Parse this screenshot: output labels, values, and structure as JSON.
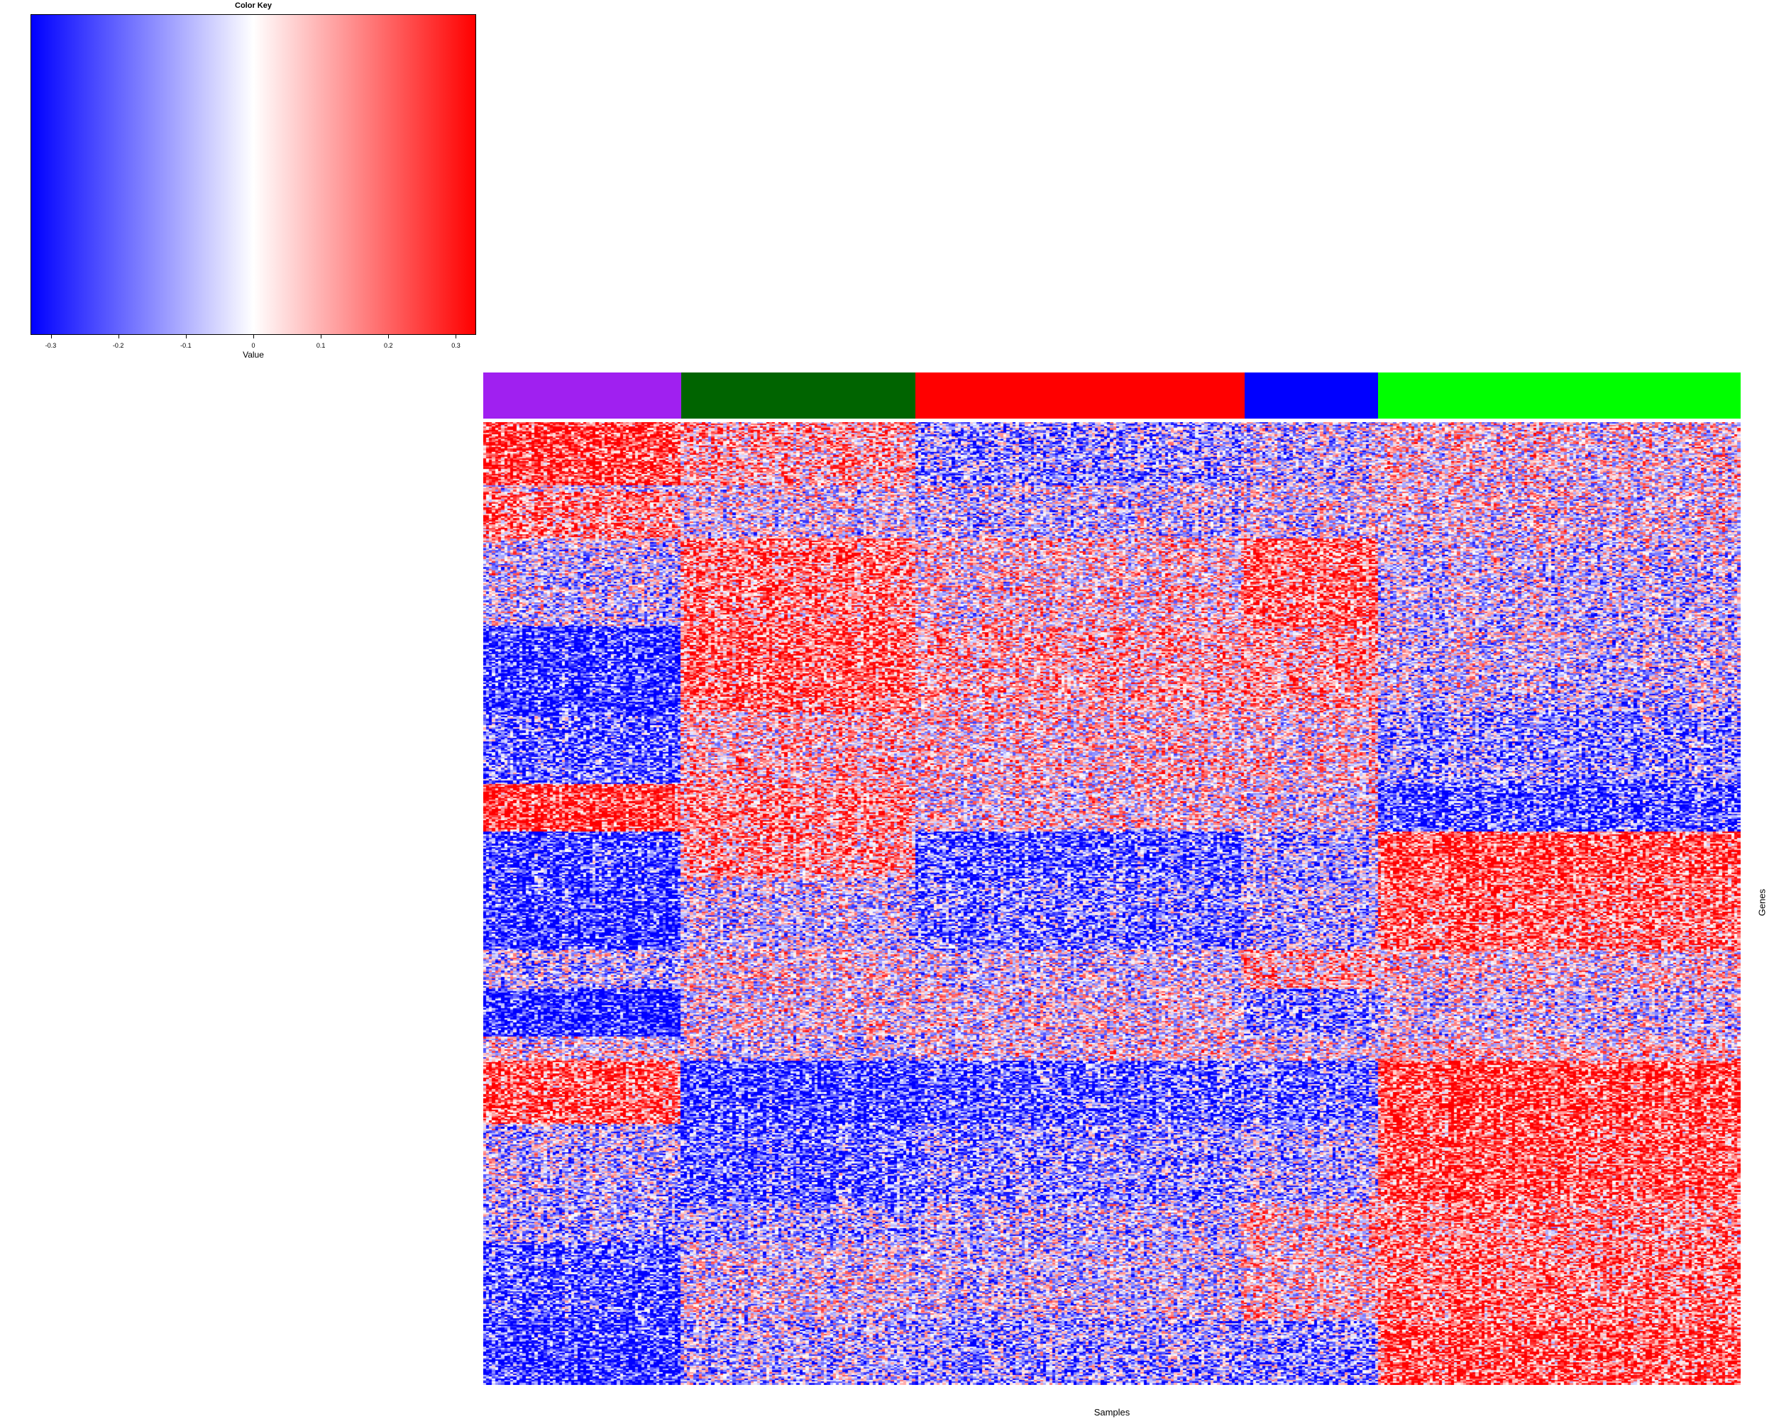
{
  "color_key": {
    "title": "Color Key",
    "xlabel": "Value",
    "range": [
      -0.33,
      0.33
    ],
    "ticks": [
      {
        "value": -0.3,
        "label": "-0.3"
      },
      {
        "value": -0.2,
        "label": "-0.2"
      },
      {
        "value": -0.1,
        "label": "-0.1"
      },
      {
        "value": 0,
        "label": "0"
      },
      {
        "value": 0.1,
        "label": "0.1"
      },
      {
        "value": 0.2,
        "label": "0.2"
      },
      {
        "value": 0.3,
        "label": "0.3"
      }
    ],
    "colors": {
      "low": "#0000ff",
      "mid": "#ffffff",
      "high": "#ff0000"
    }
  },
  "chart_data": {
    "type": "heatmap",
    "xlabel": "Samples",
    "ylabel": "Genes",
    "value_range": [
      -0.33,
      0.33
    ],
    "column_groups": [
      {
        "color": "#a020f0",
        "count": 65
      },
      {
        "color": "#006400",
        "count": 77
      },
      {
        "color": "#ff0000",
        "count": 108
      },
      {
        "color": "#0000ff",
        "count": 44
      },
      {
        "color": "#00ff00",
        "count": 119
      }
    ],
    "row_blocks": [
      {
        "rows": 40,
        "means": [
          0.26,
          0.1,
          -0.13,
          -0.06,
          0.02
        ]
      },
      {
        "rows": 4,
        "means": [
          0.0,
          0.0,
          0.0,
          0.0,
          0.0
        ]
      },
      {
        "rows": 30,
        "means": [
          0.15,
          -0.02,
          -0.06,
          -0.03,
          0.0
        ]
      },
      {
        "rows": 55,
        "means": [
          -0.05,
          0.17,
          0.04,
          0.2,
          -0.04
        ]
      },
      {
        "rows": 55,
        "means": [
          -0.28,
          0.2,
          0.09,
          0.12,
          -0.05
        ]
      },
      {
        "rows": 45,
        "means": [
          -0.2,
          0.08,
          0.05,
          0.03,
          -0.13
        ]
      },
      {
        "rows": 30,
        "means": [
          0.27,
          0.15,
          0.02,
          0.0,
          -0.23
        ]
      },
      {
        "rows": 30,
        "means": [
          -0.25,
          0.12,
          -0.22,
          -0.1,
          0.25
        ]
      },
      {
        "rows": 45,
        "means": [
          -0.26,
          -0.04,
          -0.16,
          -0.08,
          0.2
        ]
      },
      {
        "rows": 25,
        "means": [
          -0.08,
          0.02,
          -0.03,
          0.1,
          0.04
        ]
      },
      {
        "rows": 30,
        "means": [
          -0.3,
          0.0,
          0.0,
          -0.15,
          -0.02
        ]
      },
      {
        "rows": 15,
        "means": [
          0.0,
          -0.05,
          0.0,
          -0.02,
          0.05
        ]
      },
      {
        "rows": 40,
        "means": [
          0.23,
          -0.25,
          -0.2,
          -0.17,
          0.26
        ]
      },
      {
        "rows": 50,
        "means": [
          -0.07,
          -0.2,
          -0.13,
          -0.08,
          0.24
        ]
      },
      {
        "rows": 25,
        "means": [
          -0.1,
          -0.1,
          -0.06,
          0.06,
          0.16
        ]
      },
      {
        "rows": 50,
        "means": [
          -0.22,
          -0.03,
          -0.05,
          0.05,
          0.18
        ]
      },
      {
        "rows": 40,
        "means": [
          -0.27,
          -0.08,
          -0.12,
          -0.14,
          0.23
        ]
      }
    ]
  }
}
